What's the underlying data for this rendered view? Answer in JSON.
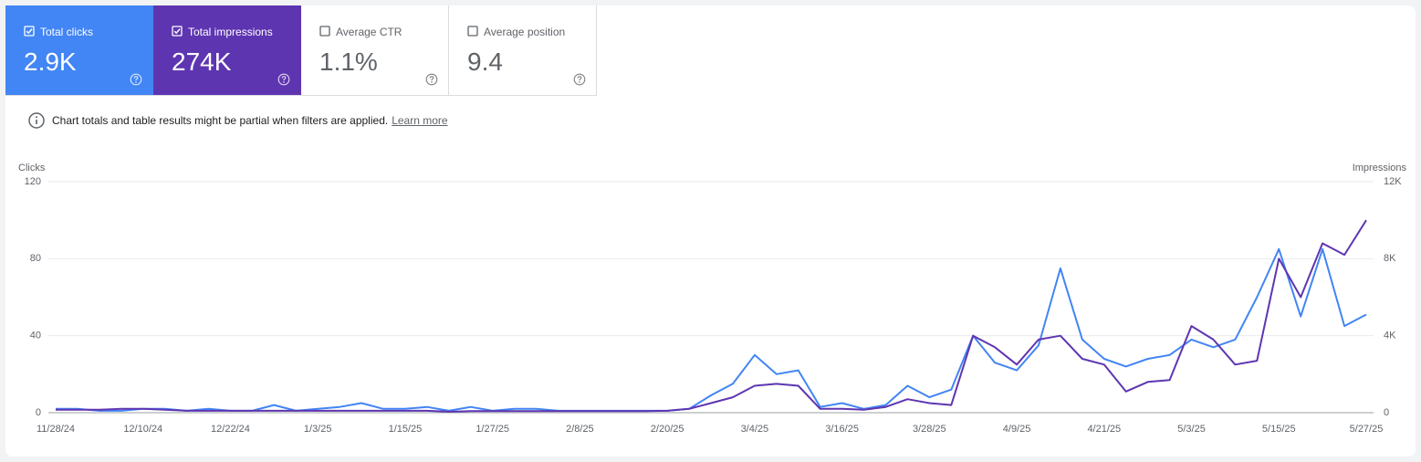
{
  "cards": [
    {
      "label": "Total clicks",
      "value": "2.9K",
      "color": "#4285f4",
      "checked": true
    },
    {
      "label": "Total impressions",
      "value": "274K",
      "color": "#5e35b1",
      "checked": true
    },
    {
      "label": "Average CTR",
      "value": "1.1%",
      "color": "#ffffff",
      "checked": false
    },
    {
      "label": "Average position",
      "value": "9.4",
      "color": "#ffffff",
      "checked": false
    }
  ],
  "notice": {
    "text": "Chart totals and table results might be partial when filters are applied.",
    "link": "Learn more"
  },
  "chart_data": {
    "type": "line",
    "y_label": "Clicks",
    "y2_label": "Impressions",
    "x": [
      "11/28/24",
      "12/1/24",
      "12/4/24",
      "12/7/24",
      "12/10/24",
      "12/13/24",
      "12/16/24",
      "12/19/24",
      "12/22/24",
      "12/25/24",
      "12/28/24",
      "12/31/24",
      "1/3/25",
      "1/6/25",
      "1/9/25",
      "1/12/25",
      "1/15/25",
      "1/18/25",
      "1/21/25",
      "1/24/25",
      "1/27/25",
      "1/30/25",
      "2/2/25",
      "2/5/25",
      "2/8/25",
      "2/11/25",
      "2/14/25",
      "2/17/25",
      "2/20/25",
      "2/23/25",
      "2/26/25",
      "3/1/25",
      "3/4/25",
      "3/7/25",
      "3/10/25",
      "3/13/25",
      "3/16/25",
      "3/19/25",
      "3/22/25",
      "3/25/25",
      "3/28/25",
      "3/31/25",
      "4/3/25",
      "4/6/25",
      "4/9/25",
      "4/12/25",
      "4/15/25",
      "4/18/25",
      "4/21/25",
      "4/24/25",
      "4/27/25",
      "4/30/25",
      "5/3/25",
      "5/6/25",
      "5/9/25",
      "5/12/25",
      "5/15/25",
      "5/18/25",
      "5/21/25",
      "5/24/25",
      "5/27/25"
    ],
    "xlim": [
      "11/28/24",
      "5/27/25"
    ],
    "xticks": [
      "11/28/24",
      "12/10/24",
      "12/22/24",
      "1/3/25",
      "1/15/25",
      "1/27/25",
      "2/8/25",
      "2/20/25",
      "3/4/25",
      "3/16/25",
      "3/28/25",
      "4/9/25",
      "4/21/25",
      "5/3/25",
      "5/15/25",
      "5/27/25"
    ],
    "ylim": [
      0,
      120
    ],
    "yticks": [
      0,
      40,
      80,
      120
    ],
    "y2lim": [
      0,
      12000
    ],
    "y2ticks": [
      {
        "value": 0,
        "label": "0"
      },
      {
        "value": 4000,
        "label": "4K"
      },
      {
        "value": 8000,
        "label": "8K"
      },
      {
        "value": 12000,
        "label": "12K"
      }
    ],
    "grid": true,
    "series": [
      {
        "name": "Clicks",
        "color": "#4285f4",
        "values": [
          2,
          2,
          1,
          1,
          2,
          2,
          1,
          2,
          1,
          1,
          4,
          1,
          2,
          3,
          5,
          2,
          2,
          3,
          1,
          3,
          1,
          2,
          2,
          1,
          1,
          1,
          1,
          1,
          1,
          2,
          9,
          15,
          30,
          20,
          22,
          3,
          5,
          2,
          4,
          14,
          8,
          12,
          40,
          26,
          22,
          35,
          75,
          38,
          28,
          24,
          28,
          30,
          38,
          34,
          38,
          60,
          85,
          50,
          85,
          45,
          51
        ]
      },
      {
        "name": "Impressions",
        "color": "#5e35b1",
        "axis": "y2",
        "values": [
          150,
          150,
          150,
          200,
          200,
          150,
          100,
          100,
          100,
          100,
          100,
          100,
          100,
          100,
          100,
          100,
          100,
          100,
          50,
          80,
          80,
          80,
          80,
          80,
          80,
          80,
          80,
          80,
          100,
          200,
          500,
          800,
          1400,
          1500,
          1400,
          200,
          200,
          150,
          300,
          700,
          500,
          400,
          4000,
          3400,
          2500,
          3800,
          4000,
          2800,
          2500,
          1100,
          1600,
          1700,
          4500,
          3800,
          2500,
          2700,
          8000,
          6000,
          8800,
          8200,
          10000
        ]
      }
    ]
  }
}
